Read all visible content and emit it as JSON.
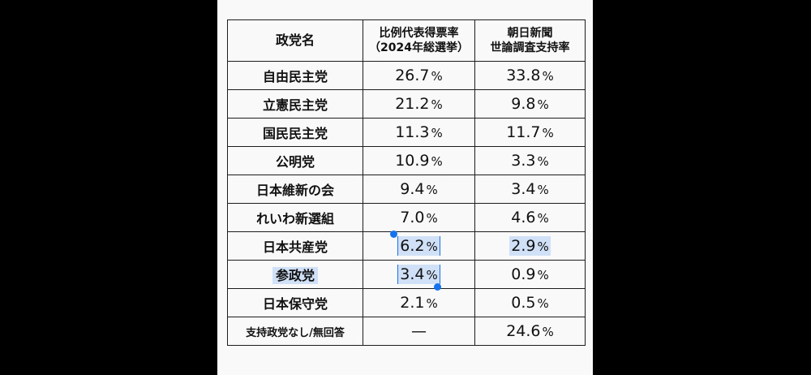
{
  "table": {
    "headers": {
      "party": "政党名",
      "pr_line1": "比例代表得票率",
      "pr_line2": "（2024年総選挙）",
      "poll_line1": "朝日新聞",
      "poll_line2": "世論調査支持率"
    },
    "unit": "%",
    "rows": [
      {
        "party": "自由民主党",
        "pr": "26.7",
        "poll": "33.8"
      },
      {
        "party": "立憲民主党",
        "pr": "21.2",
        "poll": "9.8"
      },
      {
        "party": "国民民主党",
        "pr": "11.3",
        "poll": "11.7"
      },
      {
        "party": "公明党",
        "pr": "10.9",
        "poll": "3.3"
      },
      {
        "party": "日本維新の会",
        "pr": "9.4",
        "poll": "3.4"
      },
      {
        "party": "れいわ新選組",
        "pr": "7.0",
        "poll": "4.6"
      },
      {
        "party": "日本共産党",
        "pr": "6.2",
        "poll": "2.9"
      },
      {
        "party": "参政党",
        "pr": "3.4",
        "poll": "0.9"
      },
      {
        "party": "日本保守党",
        "pr": "2.1",
        "poll": "0.5"
      },
      {
        "party": "支持政党なし/無回答",
        "pr": "—",
        "poll": "24.6"
      }
    ]
  },
  "selection": {
    "highlight_color": "#cfe0f7",
    "handle_color": "#1673f0"
  }
}
